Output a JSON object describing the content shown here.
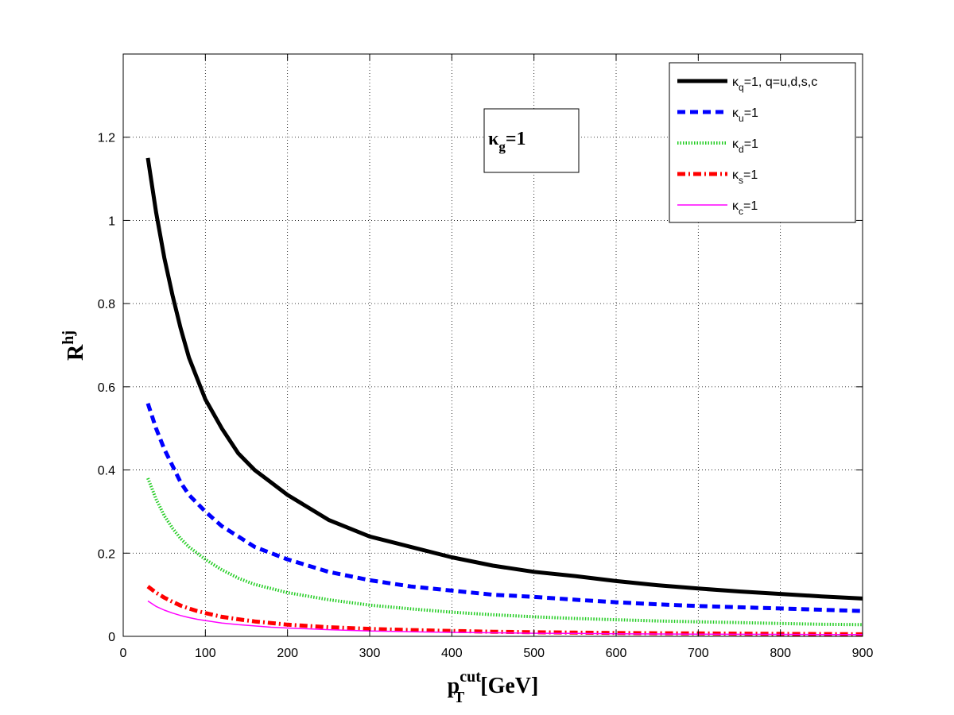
{
  "chart_data": {
    "type": "line",
    "xlabel": {
      "main": "p",
      "sub": "T",
      "sup": "cut",
      "unit": "[GeV]"
    },
    "ylabel": {
      "main": "R",
      "sup": "hj"
    },
    "xlim": [
      0,
      900
    ],
    "ylim": [
      0,
      1.4
    ],
    "xticks": [
      0,
      100,
      200,
      300,
      400,
      500,
      600,
      700,
      800,
      900
    ],
    "yticks": [
      0,
      0.2,
      0.4,
      0.6,
      0.8,
      1,
      1.2
    ],
    "yticklabels": [
      "0",
      "0.2",
      "0.4",
      "0.6",
      "0.8",
      "1",
      "1.2"
    ],
    "grid": true,
    "legend_position": "top-right",
    "annotation": {
      "kappa": "κ",
      "sub": "g",
      "rest": "=1"
    },
    "x": [
      30,
      40,
      50,
      60,
      70,
      80,
      90,
      100,
      120,
      140,
      160,
      180,
      200,
      250,
      300,
      350,
      400,
      450,
      500,
      550,
      600,
      650,
      700,
      750,
      800,
      850,
      900
    ],
    "series": [
      {
        "legend": {
          "kappa": "κ",
          "sub": "q",
          "rest": "=1, q=u,d,s,c"
        },
        "color": "#000000",
        "style": "solid",
        "values": [
          1.15,
          1.02,
          0.91,
          0.82,
          0.74,
          0.67,
          0.62,
          0.57,
          0.5,
          0.44,
          0.4,
          0.37,
          0.34,
          0.28,
          0.24,
          0.215,
          0.19,
          0.17,
          0.155,
          0.145,
          0.133,
          0.123,
          0.115,
          0.108,
          0.102,
          0.096,
          0.091
        ]
      },
      {
        "legend": {
          "kappa": "κ",
          "sub": "u",
          "rest": "=1"
        },
        "color": "#0000ff",
        "style": "dashed",
        "values": [
          0.56,
          0.5,
          0.45,
          0.41,
          0.37,
          0.34,
          0.32,
          0.3,
          0.265,
          0.24,
          0.215,
          0.2,
          0.185,
          0.155,
          0.135,
          0.12,
          0.11,
          0.1,
          0.095,
          0.088,
          0.082,
          0.077,
          0.073,
          0.07,
          0.067,
          0.064,
          0.061
        ]
      },
      {
        "legend": {
          "kappa": "κ",
          "sub": "d",
          "rest": "=1"
        },
        "color": "#22cc22",
        "style": "dotted",
        "values": [
          0.38,
          0.33,
          0.29,
          0.26,
          0.235,
          0.215,
          0.2,
          0.185,
          0.16,
          0.14,
          0.125,
          0.115,
          0.105,
          0.088,
          0.075,
          0.066,
          0.058,
          0.052,
          0.047,
          0.043,
          0.04,
          0.037,
          0.035,
          0.033,
          0.031,
          0.029,
          0.028
        ]
      },
      {
        "legend": {
          "kappa": "κ",
          "sub": "s",
          "rest": "=1"
        },
        "color": "#ff0000",
        "style": "dashdot",
        "values": [
          0.12,
          0.105,
          0.093,
          0.083,
          0.074,
          0.067,
          0.061,
          0.056,
          0.047,
          0.041,
          0.036,
          0.032,
          0.028,
          0.022,
          0.018,
          0.015,
          0.013,
          0.011,
          0.01,
          0.009,
          0.008,
          0.0075,
          0.007,
          0.0065,
          0.006,
          0.0055,
          0.005
        ]
      },
      {
        "legend": {
          "kappa": "κ",
          "sub": "c",
          "rest": "=1"
        },
        "color": "#ff00ff",
        "style": "thin",
        "values": [
          0.085,
          0.072,
          0.063,
          0.056,
          0.05,
          0.045,
          0.041,
          0.038,
          0.032,
          0.028,
          0.025,
          0.022,
          0.02,
          0.016,
          0.013,
          0.011,
          0.0095,
          0.0085,
          0.0075,
          0.007,
          0.0063,
          0.0058,
          0.0054,
          0.005,
          0.0047,
          0.0044,
          0.0042
        ]
      }
    ]
  }
}
